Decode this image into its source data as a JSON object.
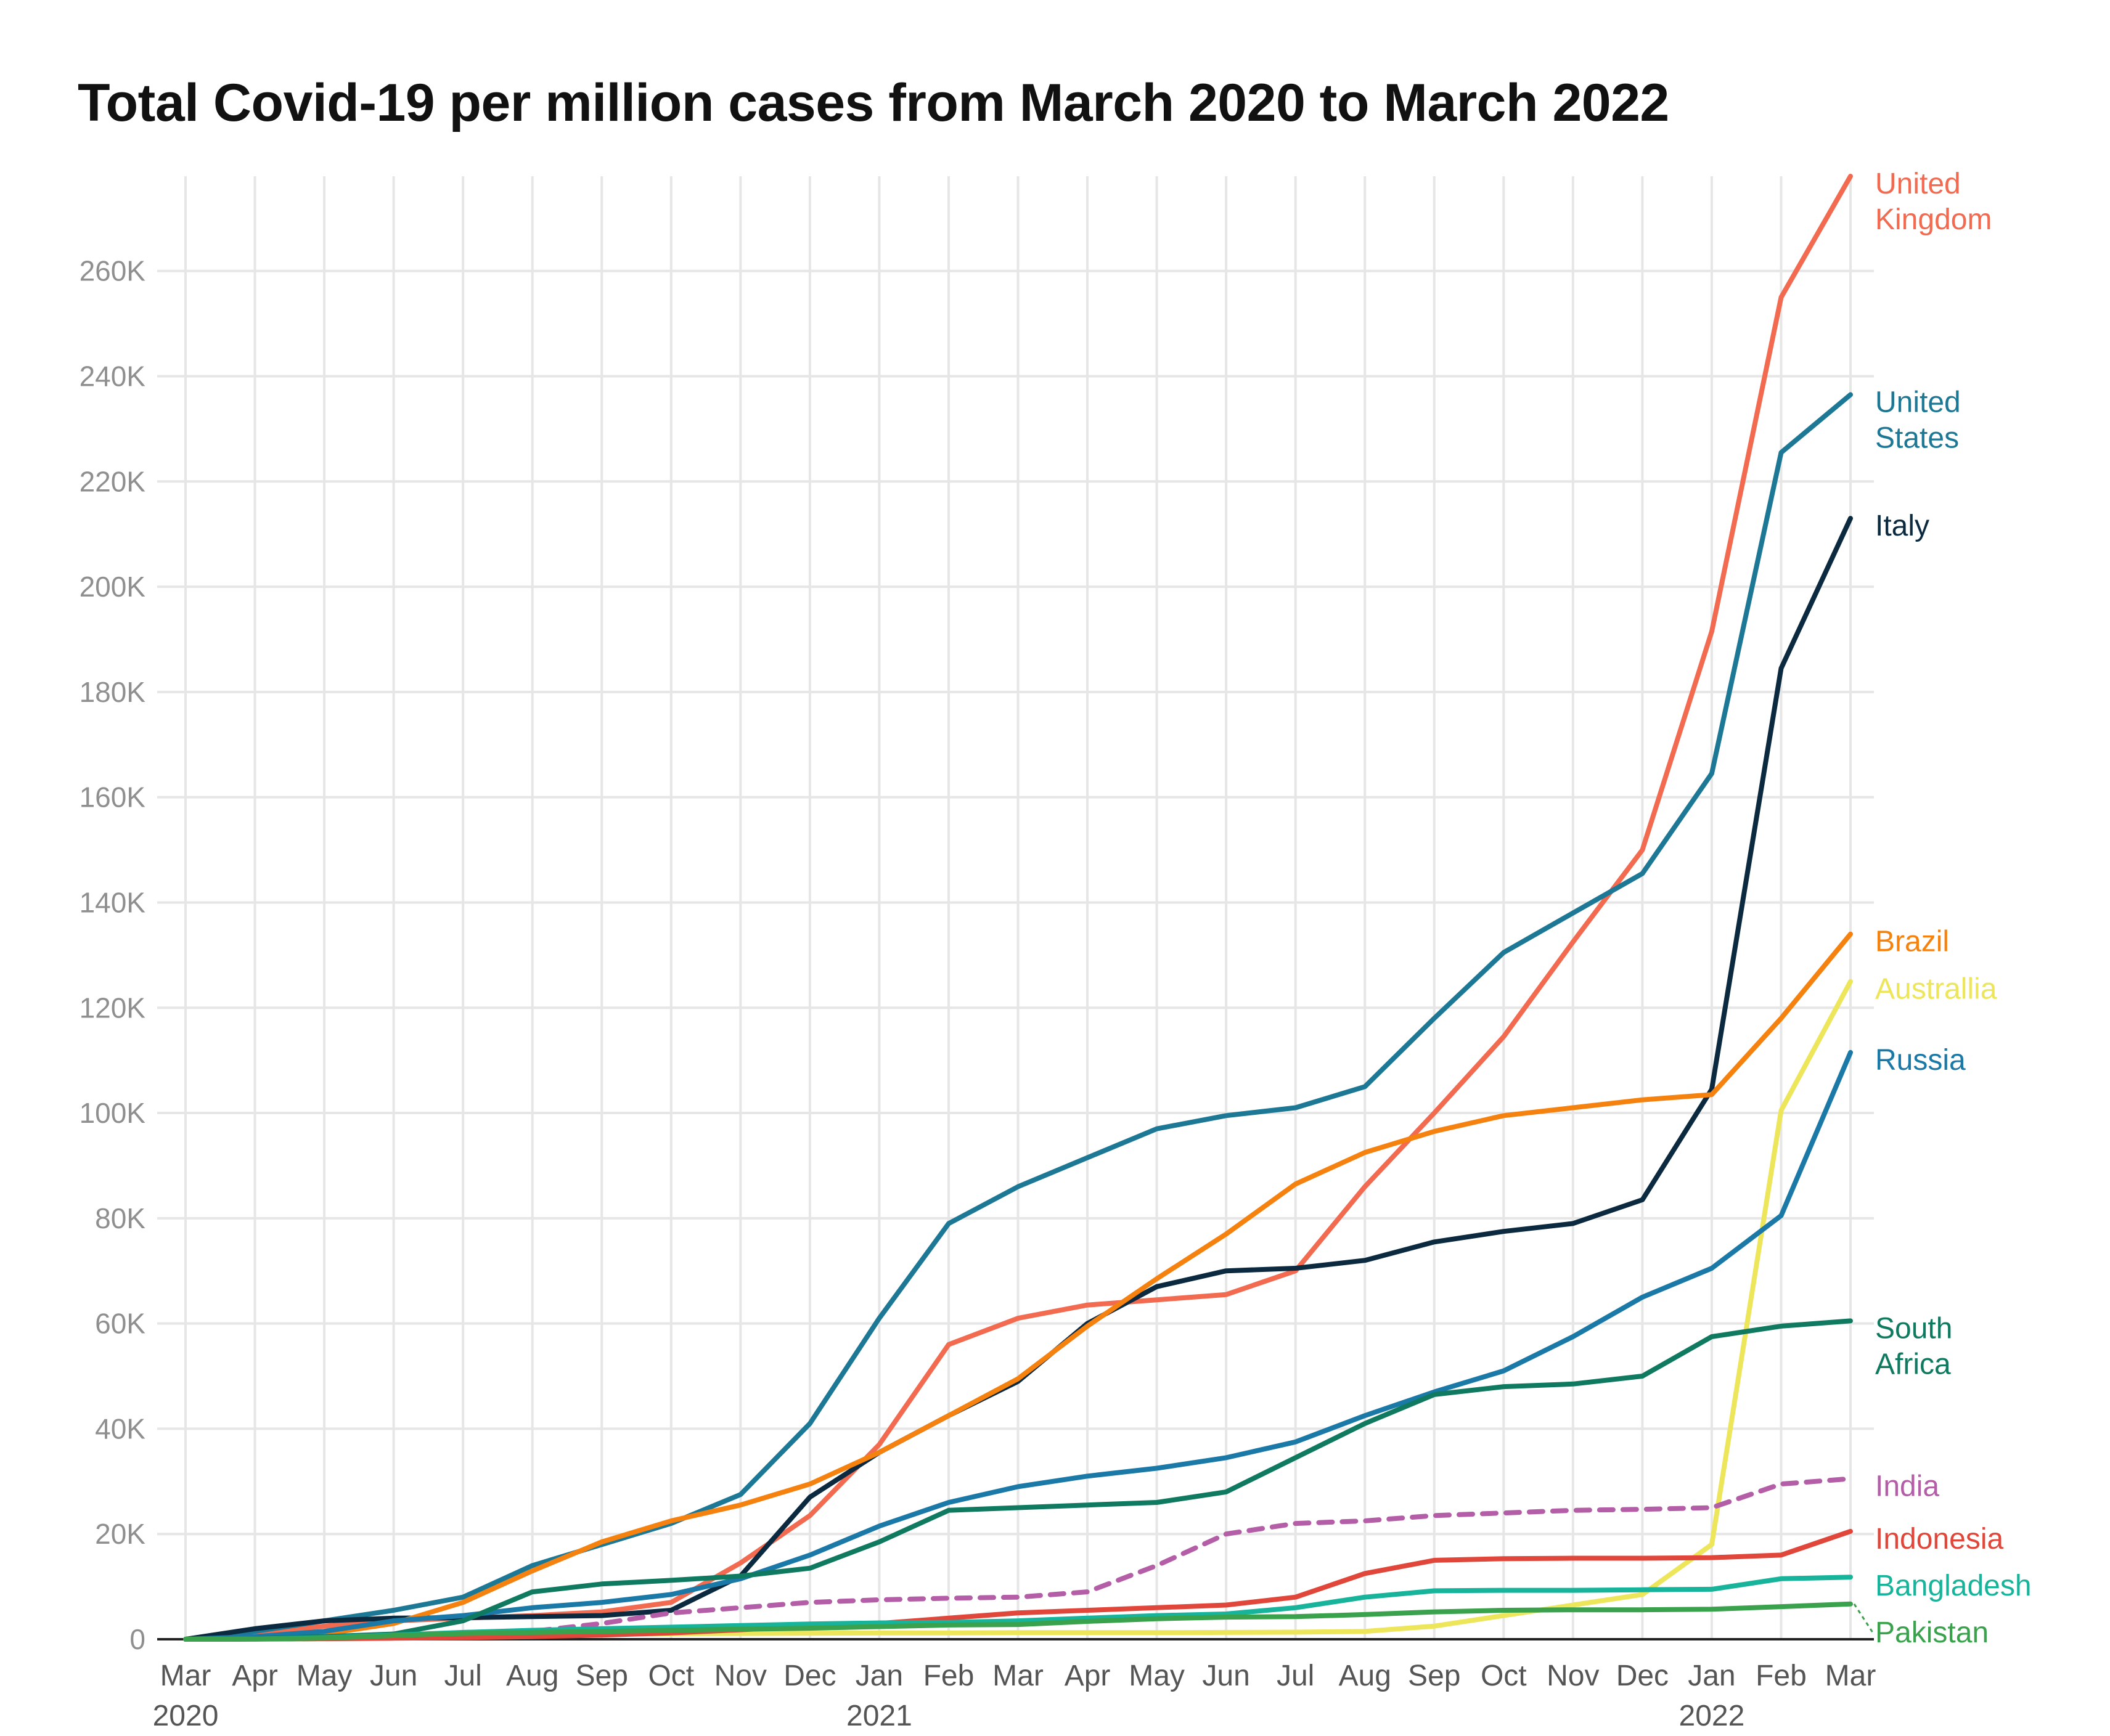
{
  "chart_data": {
    "type": "line",
    "title": "Total Covid-19 per million cases from March 2020 to March 2022",
    "xlabel": "",
    "ylabel": "",
    "ylim": [
      0,
      278000
    ],
    "grid": true,
    "legend": "right-side direct labels",
    "x": [
      "Mar 2020",
      "Apr 2020",
      "May 2020",
      "Jun 2020",
      "Jul 2020",
      "Aug 2020",
      "Sep 2020",
      "Oct 2020",
      "Nov 2020",
      "Dec 2020",
      "Jan 2021",
      "Feb 2021",
      "Mar 2021",
      "Apr 2021",
      "May 2021",
      "Jun 2021",
      "Jul 2021",
      "Aug 2021",
      "Sep 2021",
      "Oct 2021",
      "Nov 2021",
      "Dec 2021",
      "Jan 2022",
      "Feb 2022",
      "Mar 2022"
    ],
    "x_tick_labels": [
      [
        "Mar",
        "2020"
      ],
      [
        "Apr",
        ""
      ],
      [
        "May",
        ""
      ],
      [
        "Jun",
        ""
      ],
      [
        "Jul",
        ""
      ],
      [
        "Aug",
        ""
      ],
      [
        "Sep",
        ""
      ],
      [
        "Oct",
        ""
      ],
      [
        "Nov",
        ""
      ],
      [
        "Dec",
        ""
      ],
      [
        "Jan",
        "2021"
      ],
      [
        "Feb",
        ""
      ],
      [
        "Mar",
        ""
      ],
      [
        "Apr",
        ""
      ],
      [
        "May",
        ""
      ],
      [
        "Jun",
        ""
      ],
      [
        "Jul",
        ""
      ],
      [
        "Aug",
        ""
      ],
      [
        "Sep",
        ""
      ],
      [
        "Oct",
        ""
      ],
      [
        "Nov",
        ""
      ],
      [
        "Dec",
        ""
      ],
      [
        "Jan",
        "2022"
      ],
      [
        "Feb",
        ""
      ],
      [
        "Mar",
        ""
      ]
    ],
    "y_ticks": [
      0,
      20000,
      40000,
      60000,
      80000,
      100000,
      120000,
      140000,
      160000,
      180000,
      200000,
      220000,
      240000,
      260000
    ],
    "y_tick_labels": [
      "0",
      "20K",
      "40K",
      "60K",
      "80K",
      "100K",
      "120K",
      "140K",
      "160K",
      "180K",
      "200K",
      "220K",
      "240K",
      "260K"
    ],
    "series": [
      {
        "name": "United Kingdom",
        "label_lines": [
          "United",
          "Kingdom"
        ],
        "color": "#f26a4f",
        "dashed": false,
        "values": [
          0,
          1000,
          2500,
          3500,
          4000,
          4500,
          5200,
          7000,
          14500,
          23500,
          37000,
          56000,
          61000,
          63500,
          64500,
          65500,
          70000,
          86000,
          100000,
          114500,
          132500,
          150000,
          191500,
          255000,
          278000
        ]
      },
      {
        "name": "United States",
        "label_lines": [
          "United",
          "States"
        ],
        "color": "#1d7896",
        "dashed": false,
        "values": [
          0,
          1500,
          3500,
          5500,
          8000,
          14000,
          18000,
          22000,
          27500,
          41000,
          61000,
          79000,
          86000,
          91500,
          97000,
          99500,
          101000,
          105000,
          118000,
          130500,
          138000,
          145500,
          164500,
          225500,
          236500
        ]
      },
      {
        "name": "Italy",
        "label_lines": [
          "Italy"
        ],
        "color": "#0b2a40",
        "dashed": false,
        "values": [
          0,
          2000,
          3500,
          4000,
          4100,
          4300,
          4500,
          5500,
          12000,
          27000,
          35500,
          42500,
          49000,
          60000,
          67000,
          70000,
          70500,
          72000,
          75500,
          77500,
          79000,
          83500,
          104500,
          184500,
          213000
        ]
      },
      {
        "name": "Brazil",
        "label_lines": [
          "Brazil"
        ],
        "color": "#f5820f",
        "dashed": false,
        "values": [
          0,
          200,
          1000,
          3000,
          7000,
          13000,
          18500,
          22500,
          25500,
          29500,
          35500,
          42500,
          49500,
          59500,
          68500,
          77000,
          86500,
          92500,
          96500,
          99500,
          101000,
          102500,
          103500,
          118000,
          134000
        ]
      },
      {
        "name": "Australlia",
        "label_lines": [
          "Australlia"
        ],
        "color": "#ede55a",
        "dashed": false,
        "values": [
          0,
          200,
          250,
          300,
          400,
          700,
          1000,
          1050,
          1100,
          1150,
          1200,
          1200,
          1250,
          1250,
          1250,
          1300,
          1350,
          1500,
          2500,
          4500,
          6500,
          8500,
          18000,
          100500,
          125000
        ]
      },
      {
        "name": "Russia",
        "label_lines": [
          "Russia"
        ],
        "color": "#1a79a6",
        "dashed": false,
        "values": [
          0,
          500,
          1500,
          3500,
          4500,
          6000,
          7000,
          8500,
          11500,
          16000,
          21500,
          26000,
          29000,
          31000,
          32500,
          34500,
          37500,
          42500,
          47000,
          51000,
          57500,
          65000,
          70500,
          80500,
          111500
        ]
      },
      {
        "name": "South Africa",
        "label_lines": [
          "South",
          "Africa"
        ],
        "color": "#0f7a60",
        "dashed": false,
        "values": [
          0,
          100,
          500,
          1000,
          3500,
          9000,
          10500,
          11200,
          12000,
          13500,
          18500,
          24500,
          25000,
          25500,
          26000,
          28000,
          34500,
          41000,
          46500,
          48000,
          48500,
          50000,
          57500,
          59500,
          60500
        ]
      },
      {
        "name": "India",
        "label_lines": [
          "India"
        ],
        "color": "#b35ea6",
        "dashed": true,
        "values": [
          0,
          50,
          100,
          300,
          800,
          1500,
          3000,
          5000,
          6000,
          7000,
          7500,
          7800,
          8000,
          9000,
          14000,
          20000,
          22000,
          22500,
          23500,
          24000,
          24500,
          24700,
          25000,
          29500,
          30500
        ]
      },
      {
        "name": "Indonesia",
        "label_lines": [
          "Indonesia"
        ],
        "color": "#e0473a",
        "dashed": false,
        "values": [
          0,
          20,
          100,
          200,
          300,
          500,
          800,
          1200,
          1800,
          2500,
          3000,
          4000,
          5000,
          5500,
          6000,
          6500,
          8000,
          12500,
          15000,
          15300,
          15400,
          15400,
          15500,
          16000,
          20500
        ]
      },
      {
        "name": "Bangladesh",
        "label_lines": [
          "Bangladesh"
        ],
        "color": "#17b39a",
        "dashed": false,
        "values": [
          0,
          50,
          300,
          800,
          1300,
          1700,
          2000,
          2300,
          2600,
          2900,
          3100,
          3200,
          3500,
          4000,
          4500,
          4800,
          6000,
          8000,
          9200,
          9300,
          9300,
          9400,
          9500,
          11500,
          11800
        ]
      },
      {
        "name": "Pakistan",
        "label_lines": [
          "Pakistan"
        ],
        "color": "#3aa14c",
        "dashed": false,
        "values": [
          0,
          50,
          200,
          700,
          1100,
          1300,
          1500,
          1700,
          1900,
          2100,
          2400,
          2700,
          2800,
          3400,
          3900,
          4200,
          4300,
          4700,
          5200,
          5500,
          5600,
          5600,
          5700,
          6200,
          6700
        ]
      }
    ]
  }
}
